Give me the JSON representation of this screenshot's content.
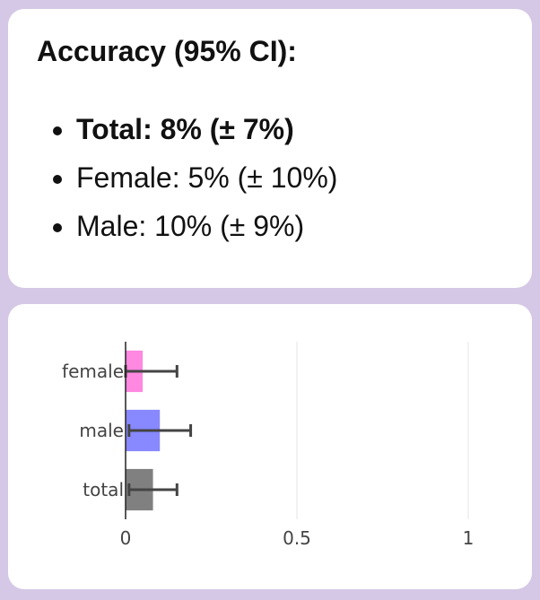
{
  "summary": {
    "title": "Accuracy (95% CI):",
    "items": [
      {
        "label": "Total: 8% (± 7%)",
        "bold": true
      },
      {
        "label": "Female: 5% (± 10%)",
        "bold": false
      },
      {
        "label": "Male: 10% (± 9%)",
        "bold": false
      }
    ]
  },
  "chart_data": {
    "type": "bar",
    "orientation": "horizontal",
    "categories": [
      "female",
      "male",
      "total"
    ],
    "values": [
      0.05,
      0.1,
      0.08
    ],
    "error": [
      0.1,
      0.09,
      0.07
    ],
    "colors": [
      "#ff88e0",
      "#8888ff",
      "#808080"
    ],
    "xlim": [
      0,
      1
    ],
    "xticks": [
      0,
      0.5,
      1
    ],
    "xtick_labels": [
      "0",
      "0.5",
      "1"
    ],
    "grid": true,
    "errorbar_color": "#444444"
  }
}
